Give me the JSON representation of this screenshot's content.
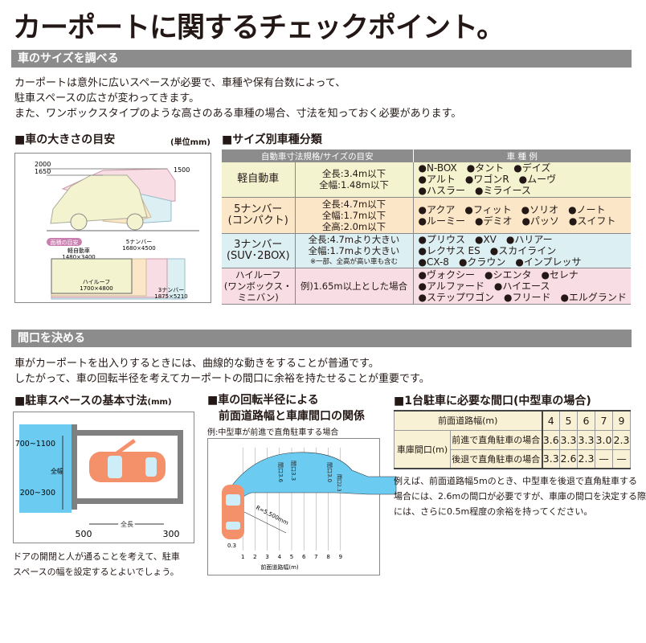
{
  "title": "カーポートに関するチェックポイント。",
  "section1": {
    "bar": "車のサイズを調べる",
    "lines": [
      "カーポートは意外に広いスペースが必要で、車種や保有台数によって、",
      "駐車スペースの広さが変わってきます。",
      "また、ワンボックスタイプのような高さのある車種の場合、寸法を知っておく必要があります。"
    ],
    "size_guide": {
      "heading": "■車の大きさの目安",
      "unit": "(単位mm)",
      "h2000": "2000",
      "h1650": "1650",
      "h1500": "1500",
      "area_badge": "面積の目安",
      "kei": "軽自動車",
      "kei_dim": "1480×3400",
      "n5": "5ナンバー",
      "n5_dim": "1680×4500",
      "hr": "ハイルーフ",
      "hr_dim": "1700×4800",
      "n3": "3ナンバー",
      "n3_dim": "1875×5210"
    },
    "classification": {
      "heading": "■サイズ別車種分類",
      "col1": "自動車寸法規格/サイズの目安",
      "col2": "車 種 例",
      "rows": [
        {
          "cat": [
            "軽自動車"
          ],
          "spec": [
            "全長:3.4m以下",
            "全幅:1.48m以下"
          ],
          "cars": [
            "●N-BOX　●タント　●デイズ",
            "●アルト　●ワゴンR　●ムーヴ",
            "●ハスラー　●ミライース"
          ]
        },
        {
          "cat": [
            "5ナンバー",
            "(コンパクト)"
          ],
          "spec": [
            "全長:4.7m以下",
            "全幅:1.7m以下",
            "全高:2.0m以下"
          ],
          "cars": [
            "●アクア　●フィット　●ソリオ　●ノート",
            "●ルーミー　●デミオ　●パッソ　●スイフト"
          ]
        },
        {
          "cat": [
            "3ナンバー",
            "(SUV･2BOX)"
          ],
          "spec": [
            "全長:4.7mより大きい",
            "全幅:1.7mより大きい"
          ],
          "note": "※一部、全高が高い車も含む",
          "cars": [
            "●プリウス　●XV　●ハリアー",
            "●レクサス ES　●スカイライン",
            "●CX-8　●クラウン　●インプレッサ"
          ]
        },
        {
          "cat": [
            "ハイルーフ",
            "(ワンボックス・",
            "ミニバン)"
          ],
          "spec": [
            "例)1.65m以上とした場合"
          ],
          "cars": [
            "●ヴォクシー　●シエンタ　●セレナ",
            "●アルファード　●ハイエース",
            "●ステップワゴン　●フリード　●エルグランド"
          ]
        }
      ]
    }
  },
  "section2": {
    "bar": "間口を決める",
    "lines": [
      "車がカーポートを出入りするときには、曲線的な動きをすることが普通です。",
      "したがって、車の回転半径を考えてカーポートの間口に余裕を持たせることが重要です。"
    ],
    "parking": {
      "heading": "■駐車スペースの基本寸法",
      "unit": "(mm)",
      "d1": "700~1100",
      "d2": "全幅",
      "d3": "200~300",
      "len": "全長",
      "front": "500",
      "rear": "300",
      "caption": [
        "ドアの開閉と人が通ることを考えて、駐車",
        "スペースの幅を設定するとよいでしょう。"
      ]
    },
    "turning": {
      "heading": [
        "■車の回転半径による",
        "前面道路幅と車庫間口の関係"
      ],
      "sub": "例:中型車が前進で直角駐車する場合",
      "gaps": [
        "間口3.6",
        "間口3.3",
        "間口3.0",
        "間口2.3"
      ],
      "radius": "R=5,500mm",
      "offset": "0.3",
      "ticks": [
        "1",
        "2",
        "3",
        "4",
        "5",
        "6",
        "7",
        "8",
        "9"
      ],
      "axis": "前面道路幅(m)"
    },
    "opening": {
      "heading": "■1台駐車に必要な間口(中型車の場合)",
      "road_label": "前面道路幅(m)",
      "roads": [
        "4",
        "5",
        "6",
        "7",
        "9"
      ],
      "garage_label": "車庫間口(m)",
      "forward_label": "前進で直角駐車の場合",
      "forward": [
        "3.6",
        "3.3",
        "3.3",
        "3.0",
        "2.3"
      ],
      "reverse_label": "後退で直角駐車の場合",
      "reverse": [
        "3.3",
        "2.6",
        "2.3",
        "—",
        "—"
      ],
      "note": [
        "例えば、前面道路幅5mのとき、中型車を後退で直角駐車する",
        "場合には、2.6mの間口が必要ですが、車庫の間口を決定する際",
        "には、さらに0.5m程度の余裕を持ってください。"
      ]
    }
  },
  "colors": {
    "bar": "#8c8c8c",
    "kei": "#f4f3d0",
    "n5": "#fbe7c8",
    "n3": "#dcf0f3",
    "highroof": "#f9dde4",
    "area_blue": "#6ccbf0",
    "car": "#f4906a"
  }
}
